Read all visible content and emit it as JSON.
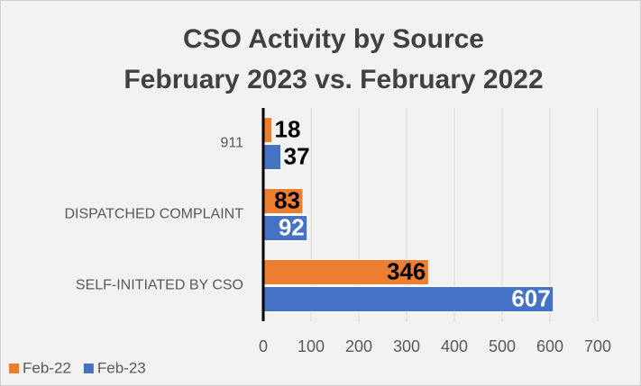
{
  "chart_data": {
    "type": "hbar",
    "title": [
      "CSO Activity by Source",
      "February 2023 vs. February 2022"
    ],
    "categories": [
      "911",
      "DISPATCHED COMPLAINT",
      "SELF-INITIATED BY CSO"
    ],
    "series": [
      {
        "name": "Feb-22",
        "color": "#ed7d31",
        "label_color": "#000000",
        "values": [
          18,
          83,
          346
        ]
      },
      {
        "name": "Feb-23",
        "color": "#4472c4",
        "label_color": "#ffffff",
        "values": [
          37,
          92,
          607
        ]
      }
    ],
    "xlim": [
      0,
      700
    ],
    "xticks": [
      0,
      100,
      200,
      300,
      400,
      500,
      600,
      700
    ],
    "grid": true,
    "legend": "bottom-left"
  }
}
